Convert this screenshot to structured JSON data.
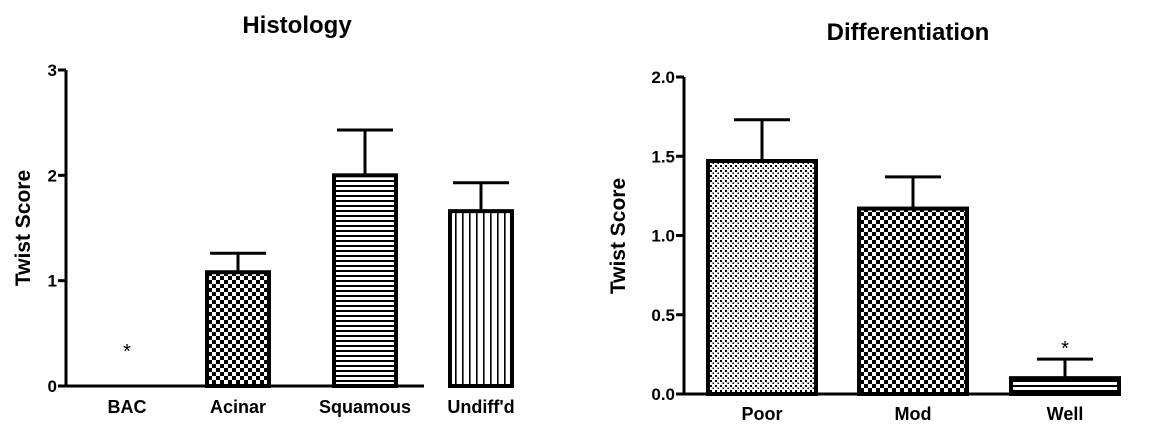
{
  "chart_data": [
    {
      "type": "bar",
      "title": "Histology",
      "xlabel": "",
      "ylabel": "Twist Score",
      "ylim": [
        0,
        3
      ],
      "yticks": [
        "0",
        "1",
        "2",
        "3"
      ],
      "grid": false,
      "categories": [
        "BAC",
        "Acinar",
        "Squamous",
        "Undiff'd"
      ],
      "values": [
        0,
        1.08,
        2.0,
        1.66
      ],
      "errors": [
        0,
        0.18,
        0.43,
        0.27
      ],
      "patterns": [
        "none",
        "checker",
        "horizontal-lines",
        "vertical-lines"
      ],
      "annotations": [
        {
          "category": "BAC",
          "text": "*"
        }
      ]
    },
    {
      "type": "bar",
      "title": "Differentiation",
      "xlabel": "",
      "ylabel": "Twist Score",
      "ylim": [
        0,
        2.0
      ],
      "yticks": [
        "0.0",
        "0.5",
        "1.0",
        "1.5",
        "2.0"
      ],
      "grid": false,
      "categories": [
        "Poor",
        "Mod",
        "Well"
      ],
      "values": [
        1.47,
        1.17,
        0.1
      ],
      "errors": [
        0.26,
        0.2,
        0.12
      ],
      "patterns": [
        "dots",
        "checker",
        "horizontal-lines"
      ],
      "annotations": [
        {
          "category": "Well",
          "text": "*"
        }
      ]
    }
  ]
}
